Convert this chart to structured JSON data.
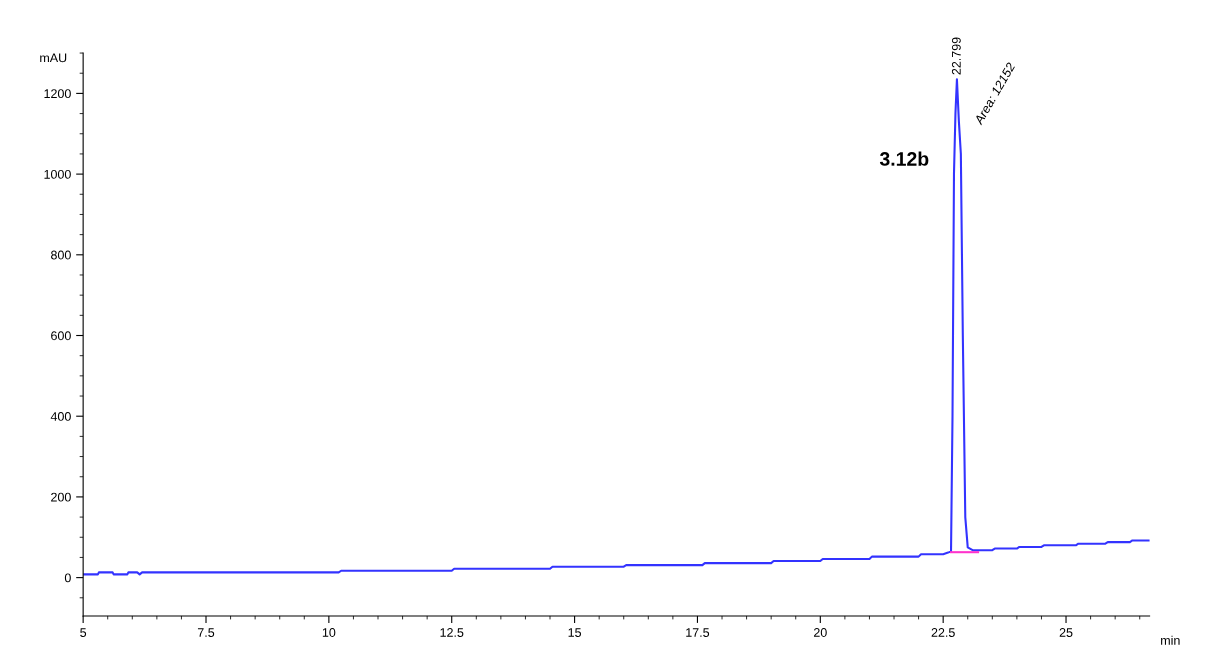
{
  "chart_data": {
    "type": "line",
    "xlabel": "min",
    "ylabel": "mAU",
    "xlim": [
      5,
      26.7
    ],
    "ylim": [
      -95,
      1300
    ],
    "xticks": [
      {
        "value": 5,
        "label": "5"
      },
      {
        "value": 7.5,
        "label": "7.5"
      },
      {
        "value": 10,
        "label": "10"
      },
      {
        "value": 12.5,
        "label": "12.5"
      },
      {
        "value": 15,
        "label": "15"
      },
      {
        "value": 17.5,
        "label": "17.5"
      },
      {
        "value": 20,
        "label": "20"
      },
      {
        "value": 22.5,
        "label": "22.5"
      },
      {
        "value": 25,
        "label": "25"
      }
    ],
    "yticks": [
      0,
      200,
      400,
      600,
      800,
      1000,
      1200
    ],
    "grid": false,
    "marker": "none",
    "line_style": "solid",
    "series": [
      {
        "color": "#3333ff",
        "x": [
          5,
          5.3,
          5.32,
          5.6,
          5.62,
          5.9,
          5.92,
          6.1,
          6.15,
          6.2,
          10.2,
          10.25,
          12.5,
          12.55,
          14.5,
          14.55,
          16,
          16.05,
          17.6,
          17.65,
          19,
          19.05,
          20,
          20.05,
          21,
          21.05,
          22,
          22.05,
          22.5,
          22.6,
          22.66,
          22.69,
          22.72,
          22.75,
          22.78,
          22.82,
          22.86,
          22.9,
          22.95,
          23.0,
          23.1,
          23.5,
          23.55,
          24,
          24.05,
          24.5,
          24.55,
          25.2,
          25.25,
          25.8,
          25.85,
          26.3,
          26.35,
          26.7
        ],
        "values": [
          8,
          8,
          13,
          13,
          8,
          8,
          13,
          13,
          8,
          13,
          13,
          17,
          17,
          22,
          22,
          27,
          27,
          31,
          31,
          36,
          36,
          41,
          41,
          46,
          46,
          52,
          52,
          58,
          58,
          62,
          65,
          400,
          1000,
          1150,
          1235,
          1130,
          1050,
          600,
          150,
          75,
          68,
          68,
          72,
          72,
          76,
          76,
          80,
          80,
          84,
          84,
          88,
          88,
          92,
          92
        ]
      },
      {
        "color": "#ff33cc",
        "x": [
          22.66,
          23.21
        ],
        "values": [
          63,
          63
        ]
      }
    ],
    "annotations": [
      {
        "text": "22.799",
        "x": 22.79,
        "y": 1235
      },
      "Area: 12152",
      "3.12b"
    ]
  }
}
